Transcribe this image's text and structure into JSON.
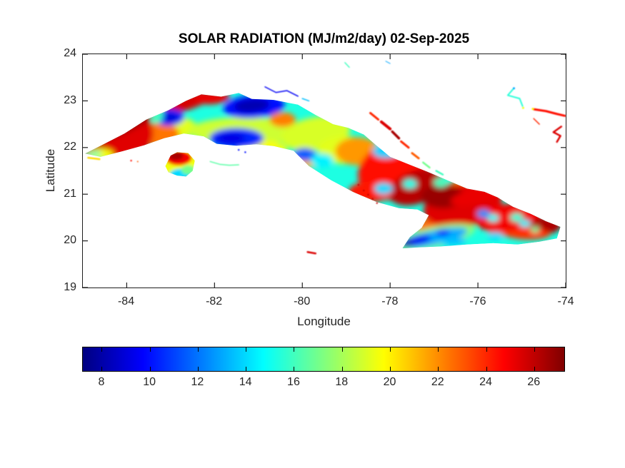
{
  "chart_data": {
    "type": "heatmap",
    "title": "SOLAR RADIATION (MJ/m2/day) 02-Sep-2025",
    "xlabel": "Longitude",
    "ylabel": "Latitude",
    "xlim": [
      -85,
      -74
    ],
    "ylim": [
      19,
      24
    ],
    "xticks": [
      -84,
      -82,
      -80,
      -78,
      -76,
      -74
    ],
    "yticks": [
      24,
      23,
      22,
      21,
      20,
      19
    ],
    "grid": false,
    "legend_position": "colorbar-bottom",
    "units": "MJ/m2/day",
    "colorbar": {
      "orientation": "horizontal",
      "colormap": "jet",
      "vmin": 7.2,
      "vmax": 27.3,
      "ticks": [
        8,
        10,
        12,
        14,
        16,
        18,
        20,
        22,
        24,
        26
      ]
    },
    "colors": {
      "background": "#ffffff",
      "axis": "#1f1f1f",
      "tick_text": "#262626",
      "title_text": "#000000"
    },
    "geometry": {
      "cuba_outline": [
        [
          -84.95,
          21.87
        ],
        [
          -84.55,
          22.06
        ],
        [
          -84.05,
          22.3
        ],
        [
          -83.55,
          22.6
        ],
        [
          -83.05,
          22.8
        ],
        [
          -82.65,
          23.0
        ],
        [
          -82.3,
          23.14
        ],
        [
          -81.85,
          23.09
        ],
        [
          -81.45,
          23.17
        ],
        [
          -81.15,
          23.04
        ],
        [
          -80.65,
          23.02
        ],
        [
          -80.1,
          22.92
        ],
        [
          -79.7,
          22.7
        ],
        [
          -79.3,
          22.5
        ],
        [
          -78.95,
          22.42
        ],
        [
          -78.6,
          22.28
        ],
        [
          -78.32,
          22.05
        ],
        [
          -78.0,
          21.8
        ],
        [
          -77.55,
          21.63
        ],
        [
          -77.15,
          21.48
        ],
        [
          -76.7,
          21.3
        ],
        [
          -76.25,
          21.12
        ],
        [
          -75.85,
          21.05
        ],
        [
          -75.55,
          20.93
        ],
        [
          -75.2,
          20.73
        ],
        [
          -74.8,
          20.58
        ],
        [
          -74.45,
          20.42
        ],
        [
          -74.12,
          20.3
        ],
        [
          -74.2,
          20.05
        ],
        [
          -74.6,
          19.98
        ],
        [
          -75.1,
          19.92
        ],
        [
          -75.65,
          19.95
        ],
        [
          -76.25,
          19.92
        ],
        [
          -76.85,
          19.88
        ],
        [
          -77.35,
          19.86
        ],
        [
          -77.72,
          19.84
        ],
        [
          -77.55,
          20.08
        ],
        [
          -77.28,
          20.28
        ],
        [
          -77.12,
          20.55
        ],
        [
          -77.38,
          20.67
        ],
        [
          -77.8,
          20.7
        ],
        [
          -78.3,
          20.83
        ],
        [
          -78.85,
          21.05
        ],
        [
          -79.35,
          21.3
        ],
        [
          -79.85,
          21.6
        ],
        [
          -80.2,
          21.93
        ],
        [
          -80.65,
          22.03
        ],
        [
          -81.05,
          22.07
        ],
        [
          -81.5,
          22.04
        ],
        [
          -81.95,
          22.08
        ],
        [
          -82.25,
          22.24
        ],
        [
          -82.7,
          22.3
        ],
        [
          -83.15,
          22.2
        ],
        [
          -83.6,
          22.05
        ],
        [
          -84.1,
          21.92
        ],
        [
          -84.6,
          21.8
        ]
      ],
      "isla_outline": [
        [
          -83.12,
          21.6
        ],
        [
          -83.0,
          21.83
        ],
        [
          -82.85,
          21.9
        ],
        [
          -82.6,
          21.88
        ],
        [
          -82.45,
          21.72
        ],
        [
          -82.5,
          21.5
        ],
        [
          -82.65,
          21.38
        ],
        [
          -82.85,
          21.4
        ],
        [
          -83.05,
          21.47
        ]
      ]
    },
    "base_value_cuba": 15.3,
    "base_value_isla": 18.0,
    "field_blobs_format": [
      "lon",
      "lat",
      "rx_deg",
      "ry_deg",
      "rot_deg",
      "value_MJ_m2_day"
    ],
    "field_blobs": [
      [
        -82.9,
        22.42,
        0.5,
        0.25,
        0,
        19.2
      ],
      [
        -81.3,
        22.35,
        1.3,
        0.3,
        0,
        18.8
      ],
      [
        -79.7,
        22.3,
        0.8,
        0.35,
        -10,
        19.0
      ],
      [
        -80.9,
        21.95,
        0.55,
        0.2,
        0,
        19.6
      ],
      [
        -79.05,
        21.95,
        0.6,
        0.3,
        0,
        19.2
      ],
      [
        -79.9,
        21.72,
        0.45,
        0.15,
        0,
        21.3
      ],
      [
        -80.45,
        22.6,
        0.3,
        0.16,
        0,
        22.3
      ],
      [
        -78.75,
        21.92,
        0.5,
        0.3,
        0,
        21.8
      ],
      [
        -83.25,
        22.28,
        0.45,
        0.25,
        0,
        22.5
      ],
      [
        -77.0,
        20.33,
        0.45,
        0.15,
        0,
        22.8
      ],
      [
        -75.1,
        20.28,
        0.75,
        0.2,
        0,
        23.4
      ],
      [
        -76.3,
        21.1,
        0.55,
        0.22,
        -10,
        23.0
      ],
      [
        -84.25,
        22.3,
        0.85,
        0.6,
        0,
        25.4
      ],
      [
        -84.0,
        22.6,
        1.0,
        0.25,
        -27,
        26.8
      ],
      [
        -84.75,
        21.95,
        0.3,
        0.2,
        0,
        26.0
      ],
      [
        -82.75,
        22.95,
        0.75,
        0.18,
        -16,
        25.6
      ],
      [
        -82.05,
        23.06,
        0.4,
        0.13,
        -5,
        25.2
      ],
      [
        -77.95,
        21.5,
        0.8,
        0.6,
        -20,
        24.6
      ],
      [
        -77.4,
        21.15,
        0.65,
        0.35,
        -20,
        26.2
      ],
      [
        -76.35,
        20.75,
        0.9,
        0.45,
        -10,
        25.4
      ],
      [
        -76.8,
        20.95,
        0.5,
        0.25,
        0,
        26.8
      ],
      [
        -75.3,
        20.5,
        0.75,
        0.3,
        -8,
        25.0
      ],
      [
        -74.45,
        20.33,
        0.35,
        0.18,
        0,
        26.4
      ],
      [
        -75.9,
        21.0,
        0.75,
        0.18,
        -14,
        25.2
      ],
      [
        -78.45,
        21.05,
        0.5,
        0.22,
        0,
        24.4
      ],
      [
        -74.85,
        20.15,
        0.5,
        0.12,
        0,
        23.8
      ],
      [
        -77.0,
        20.08,
        0.95,
        0.22,
        -12,
        17.5
      ],
      [
        -83.05,
        22.65,
        0.36,
        0.18,
        0,
        10.5
      ],
      [
        -83.02,
        22.64,
        0.2,
        0.1,
        0,
        9.0
      ],
      [
        -81.1,
        22.88,
        0.7,
        0.25,
        -5,
        10.0
      ],
      [
        -81.15,
        22.9,
        0.4,
        0.14,
        -5,
        8.2
      ],
      [
        -81.5,
        22.2,
        0.62,
        0.22,
        0,
        10.5
      ],
      [
        -81.62,
        22.2,
        0.33,
        0.12,
        0,
        9.2
      ],
      [
        -79.95,
        21.85,
        0.26,
        0.14,
        0,
        11.5
      ],
      [
        -78.1,
        21.92,
        0.3,
        0.15,
        0,
        13.8
      ],
      [
        -77.0,
        20.07,
        0.78,
        0.15,
        -12,
        13.0
      ],
      [
        -77.42,
        20.0,
        0.36,
        0.1,
        -12,
        9.5
      ],
      [
        -77.62,
        19.95,
        0.15,
        0.08,
        0,
        8.2
      ],
      [
        -76.8,
        20.17,
        0.16,
        0.07,
        0,
        9.8
      ],
      [
        -83.3,
        22.72,
        0.13,
        0.2,
        0,
        16.0
      ],
      [
        -79.55,
        21.72,
        0.26,
        0.15,
        0,
        14.5
      ],
      [
        -78.15,
        21.12,
        0.21,
        0.12,
        0,
        14.0
      ],
      [
        -75.87,
        20.58,
        0.15,
        0.09,
        0,
        12.5
      ],
      [
        -75.65,
        20.49,
        0.13,
        0.08,
        0,
        14.8
      ],
      [
        -75.12,
        20.5,
        0.15,
        0.09,
        0,
        15.5
      ],
      [
        -74.93,
        20.37,
        0.13,
        0.08,
        0,
        14.5
      ],
      [
        -75.6,
        20.1,
        0.18,
        0.08,
        0,
        14.0
      ],
      [
        -76.6,
        20.0,
        0.33,
        0.09,
        0,
        13.5
      ],
      [
        -84.88,
        21.88,
        0.08,
        0.05,
        0,
        15.0
      ],
      [
        -74.7,
        20.24,
        0.1,
        0.06,
        0,
        16.5
      ],
      [
        -76.85,
        21.25,
        0.16,
        0.1,
        0,
        16.0
      ],
      [
        -77.55,
        21.22,
        0.16,
        0.1,
        0,
        15.2
      ],
      [
        -84.6,
        21.86,
        0.3,
        0.12,
        0,
        19.5
      ],
      [
        -84.72,
        21.87,
        0.15,
        0.05,
        0,
        16.0
      ]
    ],
    "isla_blobs": [
      [
        -82.8,
        21.62,
        0.5,
        0.45,
        0,
        19.5
      ],
      [
        -82.82,
        21.78,
        0.3,
        0.16,
        0,
        25.0
      ],
      [
        -82.88,
        21.82,
        0.16,
        0.09,
        0,
        26.5
      ],
      [
        -82.75,
        21.42,
        0.28,
        0.13,
        0,
        14.0
      ],
      [
        -82.6,
        21.52,
        0.16,
        0.1,
        0,
        17.0
      ]
    ],
    "keys": [
      {
        "pts": [
          [
            -80.85,
            23.3
          ],
          [
            -80.6,
            23.18
          ],
          [
            -80.35,
            23.22
          ],
          [
            -80.1,
            23.1
          ]
        ],
        "w": 1.5,
        "v": 9.5
      },
      {
        "pts": [
          [
            -80.0,
            23.05
          ],
          [
            -79.85,
            23.0
          ]
        ],
        "w": 1.5,
        "v": 13.5
      },
      {
        "pts": [
          [
            -79.03,
            23.82
          ],
          [
            -78.93,
            23.72
          ]
        ],
        "w": 1.5,
        "v": 16.0
      },
      {
        "pts": [
          [
            -78.1,
            23.85
          ],
          [
            -78.0,
            23.8
          ]
        ],
        "w": 1.0,
        "v": 13.0
      },
      {
        "pts": [
          [
            -78.45,
            22.74
          ],
          [
            -78.27,
            22.6
          ]
        ],
        "w": 3.0,
        "v": 24.0
      },
      {
        "pts": [
          [
            -78.2,
            22.55
          ],
          [
            -78.0,
            22.4
          ]
        ],
        "w": 4.0,
        "v": 25.5
      },
      {
        "pts": [
          [
            -77.95,
            22.34
          ],
          [
            -77.8,
            22.2
          ]
        ],
        "w": 3.5,
        "v": 26.5
      },
      {
        "pts": [
          [
            -77.75,
            22.13
          ],
          [
            -77.58,
            22.0
          ]
        ],
        "w": 3.0,
        "v": 24.0
      },
      {
        "pts": [
          [
            -77.5,
            21.88
          ],
          [
            -77.35,
            21.77
          ]
        ],
        "w": 3.0,
        "v": 23.0
      },
      {
        "pts": [
          [
            -77.25,
            21.68
          ],
          [
            -77.1,
            21.57
          ]
        ],
        "w": 2.5,
        "v": 17.0
      },
      {
        "pts": [
          [
            -76.95,
            21.5
          ],
          [
            -76.8,
            21.42
          ]
        ],
        "w": 2.5,
        "v": 16.0
      },
      {
        "pts": [
          [
            -75.2,
            23.25
          ],
          [
            -75.32,
            23.12
          ],
          [
            -75.05,
            23.05
          ],
          [
            -74.98,
            22.88
          ]
        ],
        "w": 2.0,
        "v": 15.5
      },
      {
        "pts": [
          [
            -74.73,
            22.82
          ],
          [
            -74.45,
            22.78
          ],
          [
            -74.2,
            22.72
          ],
          [
            -74.02,
            22.68
          ]
        ],
        "w": 3.0,
        "v": 24.5
      },
      {
        "pts": [
          [
            -74.73,
            22.62
          ],
          [
            -74.6,
            22.5
          ]
        ],
        "w": 1.5,
        "v": 24.0
      },
      {
        "pts": [
          [
            -74.1,
            22.45
          ],
          [
            -74.28,
            22.33
          ],
          [
            -74.12,
            22.25
          ],
          [
            -74.2,
            22.12
          ]
        ],
        "w": 2.5,
        "v": 25.5
      },
      {
        "pts": [
          [
            -79.88,
            19.76
          ],
          [
            -79.7,
            19.73
          ]
        ],
        "w": 2.5,
        "v": 25.5
      },
      {
        "pts": [
          [
            -82.1,
            21.7
          ],
          [
            -81.88,
            21.64
          ],
          [
            -81.66,
            21.62
          ],
          [
            -81.45,
            21.63
          ]
        ],
        "w": 1.5,
        "v": 16.5
      },
      {
        "pts": [
          [
            -84.88,
            21.78
          ],
          [
            -84.62,
            21.75
          ]
        ],
        "w": 2.5,
        "v": 20.5
      }
    ],
    "key_dots": [
      [
        -78.72,
        21.2,
        1.2,
        26.0
      ],
      [
        -78.6,
        21.08,
        1.2,
        26.0
      ],
      [
        -78.5,
        20.99,
        1.2,
        26.0
      ],
      [
        -78.4,
        20.9,
        1.2,
        26.0
      ],
      [
        -78.3,
        20.81,
        1.2,
        26.0
      ],
      [
        -81.45,
        21.95,
        1.2,
        10.0
      ],
      [
        -81.3,
        21.9,
        1.2,
        10.0
      ],
      [
        -75.18,
        23.27,
        1.5,
        13.0
      ],
      [
        -74.97,
        22.85,
        1.5,
        19.5
      ],
      [
        -74.75,
        22.83,
        1.5,
        20.0
      ],
      [
        -83.9,
        21.72,
        1.2,
        24.5
      ],
      [
        -83.75,
        21.7,
        1.0,
        23.0
      ]
    ]
  }
}
